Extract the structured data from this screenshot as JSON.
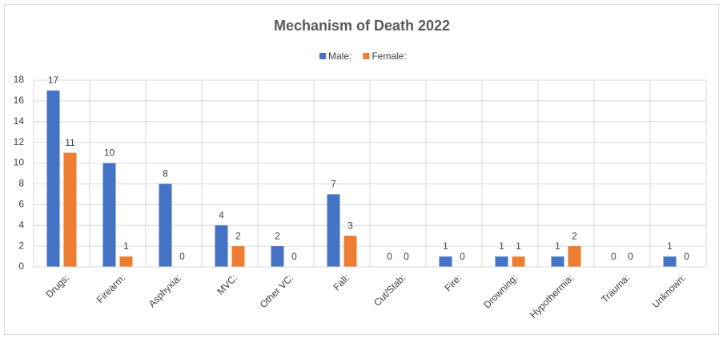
{
  "chart_data": {
    "type": "bar",
    "title": "Mechanism of Death 2022",
    "categories": [
      "Drugs:",
      "Firearm:",
      "Asphyxia:",
      "MVC:",
      "Other VC:",
      "Fall:",
      "Cut/Stab:",
      "Fire:",
      "Drowning:",
      "Hypothermia:",
      "Trauma:",
      "Unknown:"
    ],
    "series": [
      {
        "name": "Male:",
        "color": "#4472c4",
        "values": [
          17,
          10,
          8,
          4,
          2,
          7,
          0,
          1,
          1,
          1,
          0,
          1
        ]
      },
      {
        "name": "Female:",
        "color": "#ed7d31",
        "values": [
          11,
          1,
          0,
          2,
          0,
          3,
          0,
          0,
          1,
          2,
          0,
          0
        ]
      }
    ],
    "ylim": [
      0,
      18
    ],
    "yticks": [
      0,
      2,
      4,
      6,
      8,
      10,
      12,
      14,
      16,
      18
    ],
    "grid": true,
    "legend": "top"
  }
}
